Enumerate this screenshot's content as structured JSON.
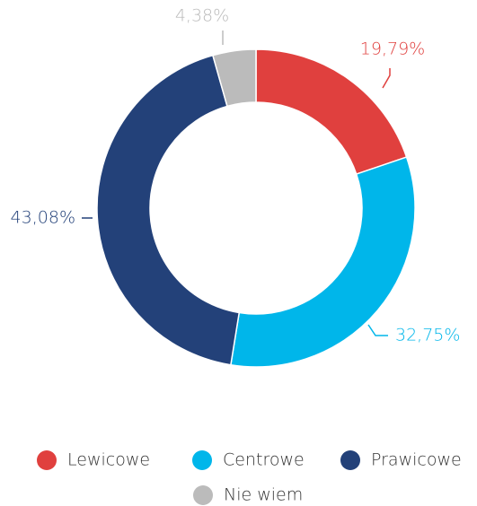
{
  "chart_data": {
    "type": "donut",
    "categories": [
      "Lewicowe",
      "Centrowe",
      "Prawicowe",
      "Nie wiem"
    ],
    "values": [
      19.79,
      32.75,
      43.08,
      4.38
    ],
    "value_labels": [
      "19,79%",
      "32,75%",
      "43,08%",
      "4,38%"
    ],
    "colors": [
      "#e0403e",
      "#00b6ea",
      "#234179",
      "#bbbbbb"
    ],
    "legend": "bottom"
  }
}
